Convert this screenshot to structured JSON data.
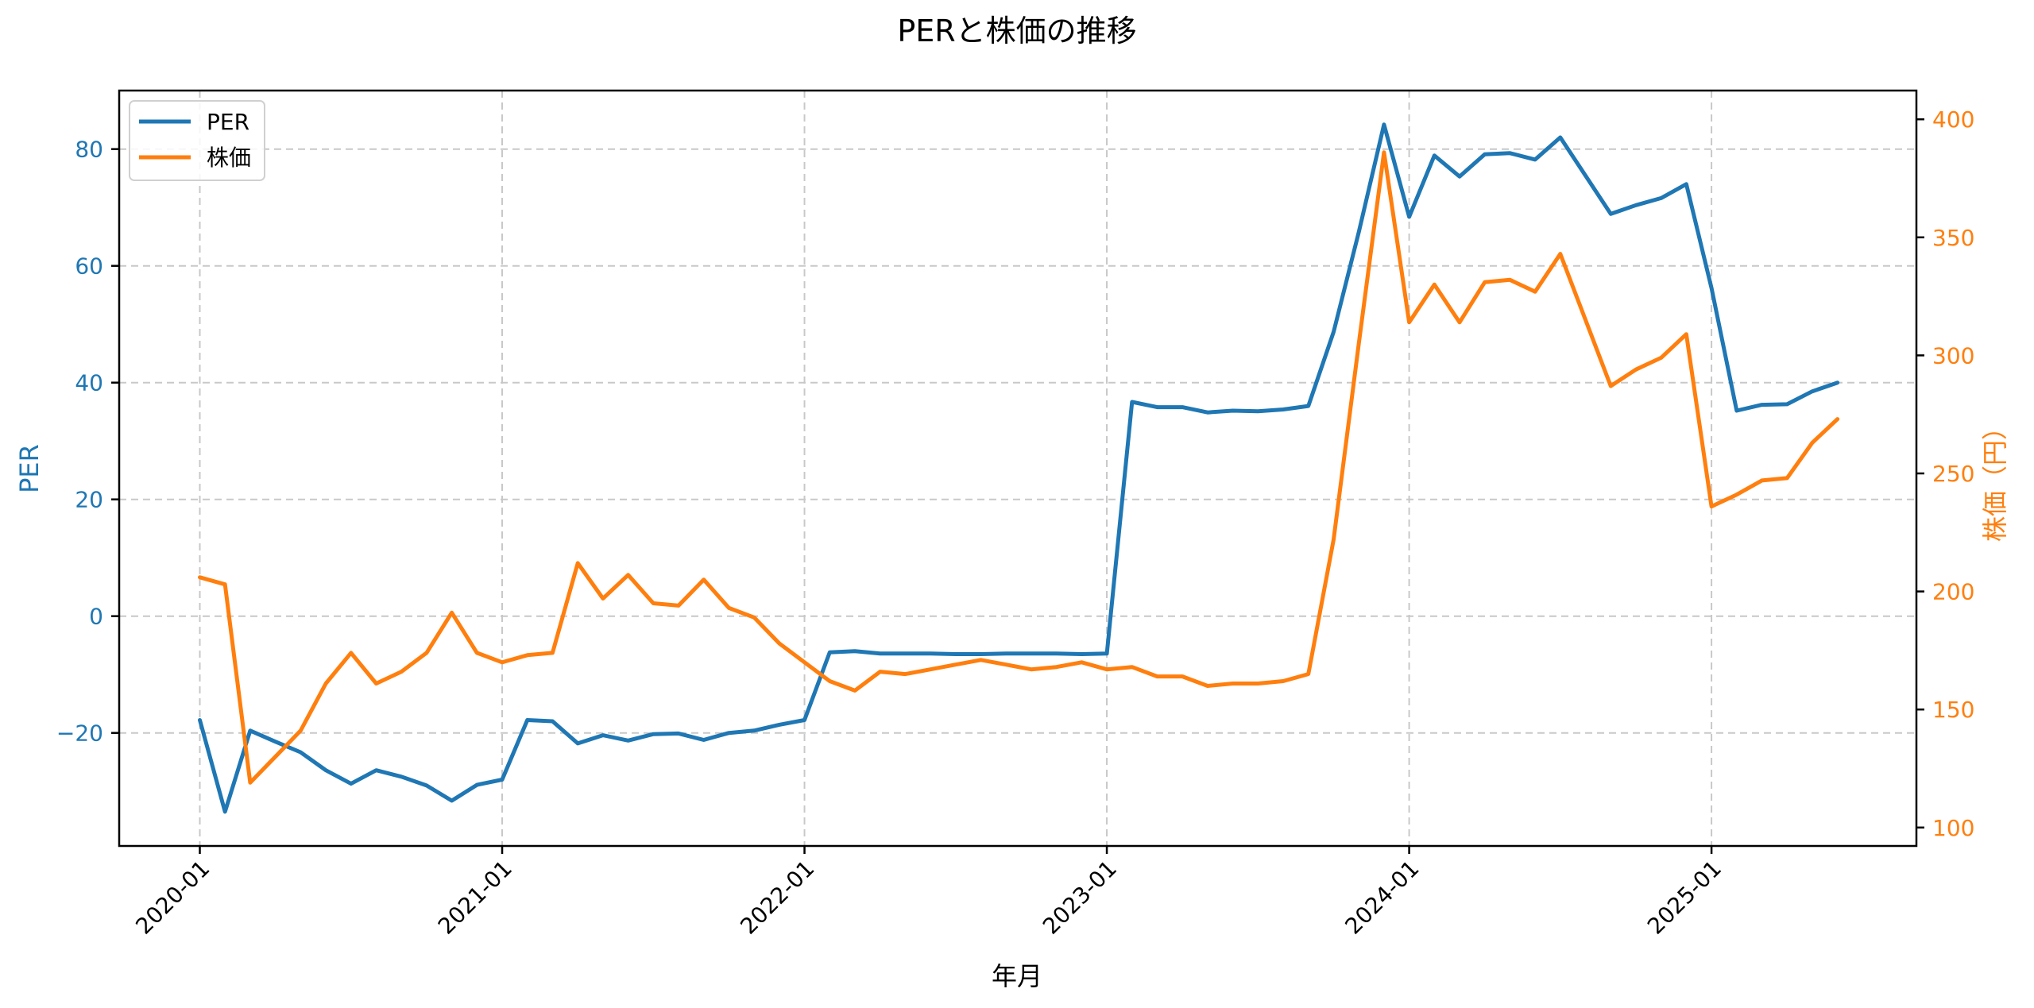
{
  "title": "PERと株価の推移",
  "colors": {
    "per": "#1f77b4",
    "price": "#ff7f0e",
    "grid": "#c8c8c8",
    "axis": "#000000"
  },
  "legend": {
    "items": [
      {
        "label": "PER",
        "series": "per"
      },
      {
        "label": "株価",
        "series": "price"
      }
    ]
  },
  "axes": {
    "x_label": "年月",
    "left_label": "PER",
    "right_label": "株価（円）",
    "x_ticks": [
      "2020-01",
      "2021-01",
      "2022-01",
      "2023-01",
      "2024-01",
      "2025-01"
    ],
    "left_ticks": [
      "80",
      "60",
      "40",
      "20",
      "0",
      "−20"
    ],
    "right_ticks": [
      "400",
      "350",
      "300",
      "250",
      "200",
      "150",
      "100"
    ]
  },
  "chart_data": {
    "type": "line",
    "title": "PERと株価の推移",
    "xlabel": "年月",
    "ylabel": "PER",
    "ylabel_right": "株価（円）",
    "grid": true,
    "legend_position": "upper left",
    "x_ticks": [
      "2020-01",
      "2021-01",
      "2022-01",
      "2023-01",
      "2024-01",
      "2025-01"
    ],
    "ylim": [
      -40,
      90
    ],
    "ylim_right": [
      93,
      411
    ],
    "x": [
      "2020-01",
      "2020-02",
      "2020-03",
      "2020-04",
      "2020-05",
      "2020-06",
      "2020-07",
      "2020-08",
      "2020-09",
      "2020-10",
      "2020-11",
      "2020-12",
      "2021-01",
      "2021-02",
      "2021-03",
      "2021-04",
      "2021-05",
      "2021-06",
      "2021-07",
      "2021-08",
      "2021-09",
      "2021-10",
      "2021-11",
      "2021-12",
      "2022-01",
      "2022-02",
      "2022-03",
      "2022-04",
      "2022-05",
      "2022-06",
      "2022-07",
      "2022-08",
      "2022-09",
      "2022-10",
      "2022-11",
      "2022-12",
      "2023-01",
      "2023-02",
      "2023-03",
      "2023-04",
      "2023-05",
      "2023-06",
      "2023-07",
      "2023-08",
      "2023-09",
      "2023-10",
      "2023-11",
      "2023-12",
      "2024-01",
      "2024-02",
      "2024-03",
      "2024-04",
      "2024-05",
      "2024-06",
      "2024-07",
      "2024-09",
      "2024-10",
      "2024-11",
      "2024-12",
      "2025-01",
      "2025-02",
      "2025-03",
      "2025-04",
      "2025-05",
      "2025-06"
    ],
    "series": [
      {
        "name": "PER",
        "axis": "left",
        "values": [
          -17.8,
          -33.5,
          -19.6,
          -21.5,
          -23.3,
          -26.4,
          -28.7,
          -26.4,
          -27.5,
          -29.0,
          -31.6,
          -28.9,
          -28.0,
          -17.8,
          -18.0,
          -21.8,
          -20.4,
          -21.3,
          -20.2,
          -20.1,
          -21.2,
          -20.0,
          -19.6,
          -18.6,
          -17.8,
          -6.2,
          -6.0,
          -6.4,
          -6.4,
          -6.4,
          -6.5,
          -6.5,
          -6.4,
          -6.4,
          -6.4,
          -6.5,
          -6.4,
          36.7,
          35.8,
          35.8,
          34.9,
          35.2,
          35.1,
          35.4,
          36.0,
          48.7,
          65.8,
          84.2,
          68.4,
          78.9,
          75.3,
          79.1,
          79.3,
          78.2,
          82.0,
          68.9,
          70.4,
          71.6,
          74.0,
          56.2,
          35.2,
          36.2,
          36.3,
          38.5,
          40.0
        ]
      },
      {
        "name": "株価",
        "axis": "right",
        "values": [
          206,
          203,
          119,
          130,
          141,
          161,
          174,
          161,
          166,
          174,
          191,
          174,
          170,
          173,
          174,
          212,
          197,
          207,
          195,
          194,
          205,
          193,
          189,
          178,
          170,
          162,
          158,
          166,
          165,
          167,
          169,
          171,
          169,
          167,
          168,
          170,
          167,
          168,
          164,
          164,
          160,
          161,
          161,
          162,
          165,
          222,
          305,
          386,
          314,
          330,
          314,
          331,
          332,
          327,
          343,
          287,
          294,
          299,
          309,
          236,
          241,
          247,
          248,
          263,
          273
        ]
      }
    ]
  }
}
